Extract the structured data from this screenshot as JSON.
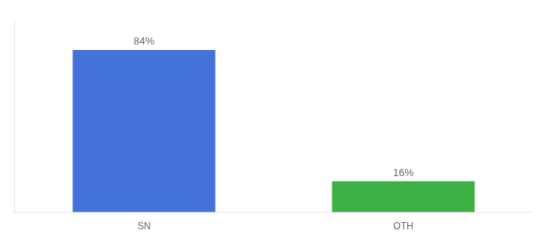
{
  "chart_data": {
    "type": "bar",
    "categories": [
      "SN",
      "OTH"
    ],
    "values": [
      84,
      16
    ],
    "colors": [
      "#4472db",
      "#3cb043"
    ],
    "value_labels": [
      "84%",
      "16%"
    ],
    "data_labels": true,
    "ylim": [
      0,
      100
    ],
    "tick_labels": "x",
    "grid": false
  }
}
